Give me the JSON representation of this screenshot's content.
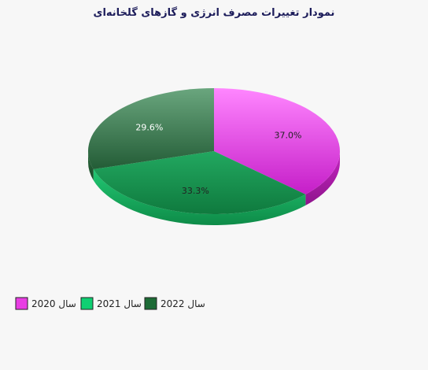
{
  "chart_data": {
    "type": "pie",
    "title": "نمودار تغییرات مصرف انرژی و گازهای گلخانه‌ای",
    "slices": [
      {
        "label": "سال 2020",
        "value": 37.0,
        "display": "37.0%",
        "color": "#e83ee3"
      },
      {
        "label": "سال 2021",
        "value": 33.3,
        "display": "33.3%",
        "color": "#13b35a"
      },
      {
        "label": "سال 2022",
        "value": 29.6,
        "display": "29.6%",
        "color": "#2e7a45"
      }
    ],
    "legend_position": "bottom-left"
  },
  "legend_swatch_colors": [
    "#e83ee3",
    "#0fcf72",
    "#1d6b36"
  ]
}
